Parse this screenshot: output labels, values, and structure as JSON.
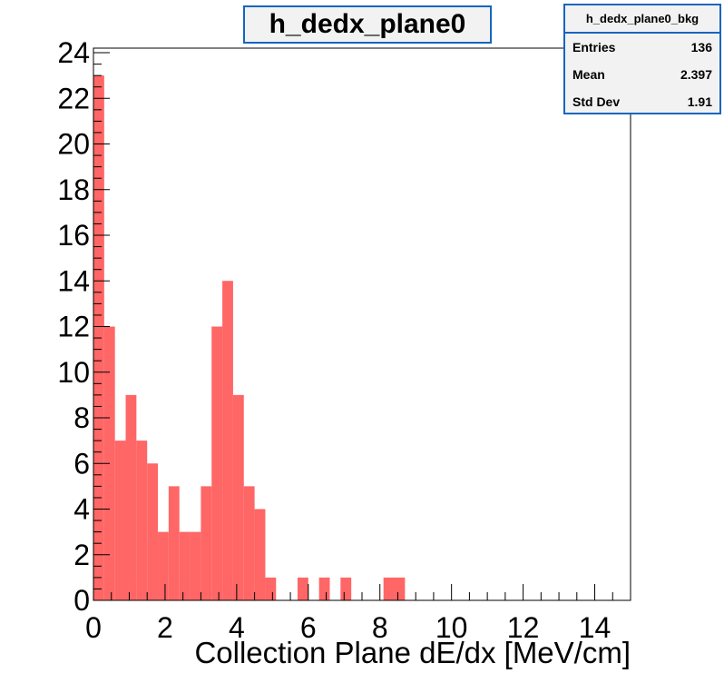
{
  "chart_data": {
    "type": "bar",
    "title": "h_dedx_plane0",
    "xlabel": "Collection Plane dE/dx [MeV/cm]",
    "ylabel": "",
    "xlim": [
      0,
      15
    ],
    "ylim": [
      0,
      24.2
    ],
    "bin_width": 0.3,
    "x_ticks": [
      0,
      2,
      4,
      6,
      8,
      10,
      12,
      14
    ],
    "y_ticks": [
      0,
      2,
      4,
      6,
      8,
      10,
      12,
      14,
      16,
      18,
      20,
      22,
      24
    ],
    "values": [
      23,
      12,
      7,
      9,
      7,
      6,
      3,
      5,
      3,
      3,
      5,
      12,
      14,
      9,
      5,
      4,
      1,
      0,
      0,
      1,
      0,
      1,
      0,
      1,
      0,
      0,
      0,
      1,
      1,
      0,
      0,
      0,
      0,
      0,
      0,
      0,
      0,
      0,
      0,
      0,
      0,
      0,
      0,
      0,
      0,
      0,
      0,
      0,
      0,
      0
    ],
    "bar_color": "#ff6666",
    "grid": false,
    "legend": "none"
  },
  "stats": {
    "name": "h_dedx_plane0_bkg",
    "entries_label": "Entries",
    "entries_value": "136",
    "mean_label": "Mean",
    "mean_value": "2.397",
    "std_label": "Std Dev",
    "std_value": "1.91"
  },
  "colors": {
    "frame": "#1565c0",
    "box_bg": "#f2f2f2"
  }
}
